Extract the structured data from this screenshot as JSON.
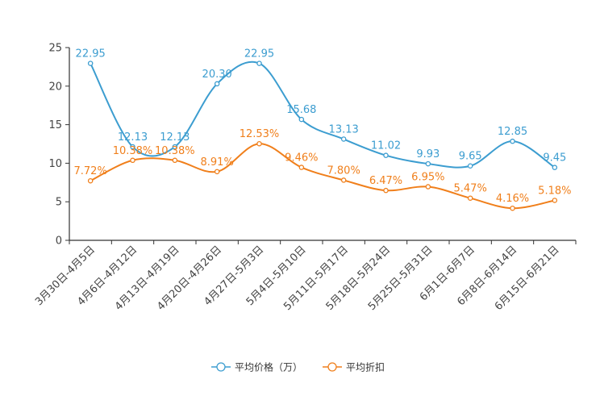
{
  "chart_data": {
    "type": "line",
    "title": "",
    "xlabel": "",
    "ylabel": "",
    "ylim": [
      0,
      25
    ],
    "yticks": [
      0,
      5,
      10,
      15,
      20,
      25
    ],
    "grid": false,
    "legend_position": "bottom-center",
    "categories": [
      "3月30日-4月5日",
      "4月6日-4月12日",
      "4月13日-4月19日",
      "4月20日-4月26日",
      "4月27日-5月3日",
      "5月4日-5月10日",
      "5月11日-5月17日",
      "5月18日-5月24日",
      "5月25日-5月31日",
      "6月1日-6月7日",
      "6月8日-6月14日",
      "6月15日-6月21日"
    ],
    "series": [
      {
        "name": "平均价格（万）",
        "color": "#3c9dd0",
        "values": [
          22.95,
          12.13,
          12.13,
          20.3,
          22.95,
          15.68,
          13.13,
          11.02,
          9.93,
          9.65,
          12.85,
          9.45
        ],
        "labels": [
          "22.95",
          "12.13",
          "12.13",
          "20.30",
          "22.95",
          "15.68",
          "13.13",
          "11.02",
          "9.93",
          "9.65",
          "12.85",
          "9.45"
        ]
      },
      {
        "name": "平均折扣",
        "color": "#f07f1b",
        "values": [
          7.72,
          10.38,
          10.38,
          8.91,
          12.53,
          9.46,
          7.8,
          6.47,
          6.95,
          5.47,
          4.16,
          5.18
        ],
        "labels": [
          "7.72%",
          "10.38%",
          "10.38%",
          "8.91%",
          "12.53%",
          "9.46%",
          "7.80%",
          "6.47%",
          "6.95%",
          "5.47%",
          "4.16%",
          "5.18%"
        ]
      }
    ]
  }
}
